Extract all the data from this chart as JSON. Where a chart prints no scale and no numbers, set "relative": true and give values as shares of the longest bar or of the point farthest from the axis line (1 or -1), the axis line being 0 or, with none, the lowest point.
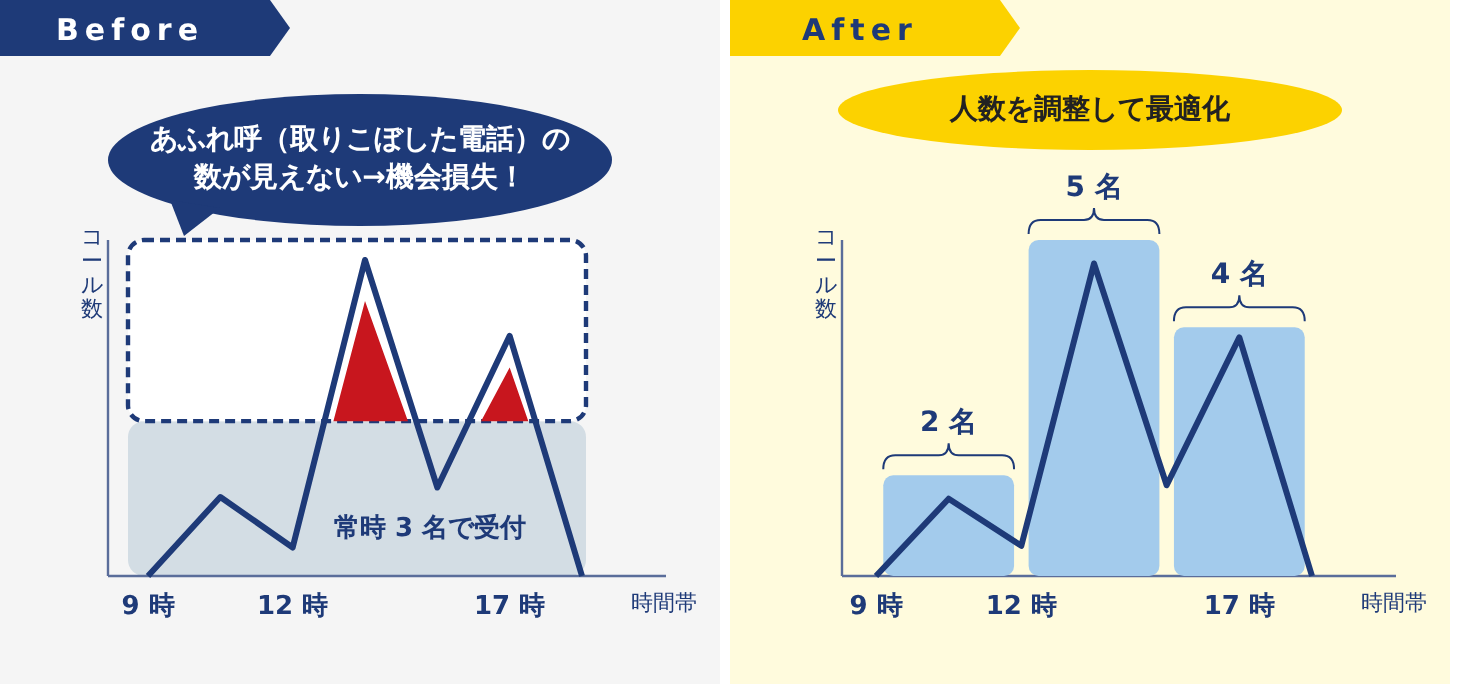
{
  "chart_data": [
    {
      "type": "line",
      "title": "Before",
      "ylabel": "コール数",
      "xlabel": "時間帯",
      "relative": true,
      "categories": [
        "9 時",
        null,
        "12 時",
        null,
        null,
        "17 時",
        null
      ],
      "series": [
        {
          "type": "line",
          "color": "#1e3a78",
          "values": [
            0,
            0.25,
            0.09,
            1,
            0.28,
            0.76,
            0
          ]
        },
        {
          "type": "area",
          "color": "#c8161e",
          "values": [
            null,
            null,
            0,
            0.87,
            0.23,
            0.66,
            0
          ]
        }
      ],
      "bands": [
        {
          "axis": "y",
          "from": 0,
          "to": 0.49,
          "label": "常時 3 名で受付",
          "color": "#d3dde4"
        },
        {
          "axis": "y",
          "from": 0.49,
          "to": 1,
          "color": "#ffffff"
        }
      ],
      "annotations": [
        "あふれ呼（取りこぼした電話）の数が見えない→機会損失！"
      ]
    },
    {
      "type": "bar",
      "title": "After",
      "ylabel": "コール数",
      "xlabel": "時間帯",
      "relative": true,
      "categories": [
        "9 時",
        null,
        "12 時",
        null,
        null,
        "17 時",
        null
      ],
      "series": [
        {
          "type": "bar",
          "color": "#a3cbec",
          "values": [
            null,
            0.3,
            null,
            1,
            null,
            0.74,
            null
          ]
        },
        {
          "type": "line",
          "color": "#1e3a78",
          "values": [
            0,
            0.23,
            0.09,
            0.93,
            0.27,
            0.71,
            0
          ]
        }
      ],
      "annotations": [
        "人数を調整して最適化",
        {
          "text": "2 名",
          "y": 0.3
        },
        {
          "text": "5 名",
          "y": 1
        },
        {
          "text": "4 名",
          "y": 0.74
        }
      ]
    }
  ]
}
